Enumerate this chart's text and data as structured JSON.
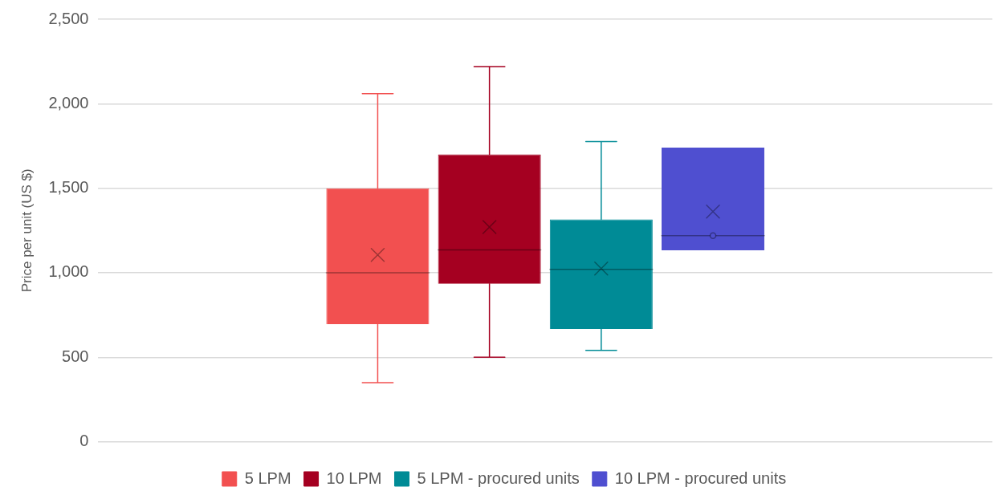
{
  "chart_data": {
    "type": "box",
    "ylabel": "Price per unit (US $)",
    "categories": [
      null
    ],
    "series": [
      {
        "name": "5 LPM",
        "color": "#f25050",
        "boxes": [
          {
            "low": 350,
            "q1": 695,
            "median": 1000,
            "q3": 1500,
            "high": 2060,
            "mean": 1105
          }
        ]
      },
      {
        "name": "10 LPM",
        "color": "#a50021",
        "boxes": [
          {
            "low": 500,
            "q1": 935,
            "median": 1135,
            "q3": 1700,
            "high": 2220,
            "mean": 1270
          }
        ]
      },
      {
        "name": "5 LPM - procured units",
        "color": "#008b96",
        "boxes": [
          {
            "low": 540,
            "q1": 668,
            "median": 1020,
            "q3": 1316,
            "high": 1776,
            "mean": 1025
          }
        ]
      },
      {
        "name": "10 LPM - procured units",
        "color": "#4f4fd0",
        "boxes": [
          {
            "low": 1133,
            "q1": 1133,
            "median": 1219,
            "q3": 1740,
            "high": 1740,
            "mean": 1362,
            "outliers": [
              1219
            ]
          }
        ]
      }
    ],
    "ylim": [
      0,
      2500
    ],
    "yticks": [
      {
        "value": 0,
        "label": "0"
      },
      {
        "value": 500,
        "label": "500"
      },
      {
        "value": 1000,
        "label": "1,000"
      },
      {
        "value": 1500,
        "label": "1,500"
      },
      {
        "value": 2000,
        "label": "2,000"
      },
      {
        "value": 2500,
        "label": "2,500"
      }
    ],
    "grid": "y",
    "legend": "bottom"
  }
}
